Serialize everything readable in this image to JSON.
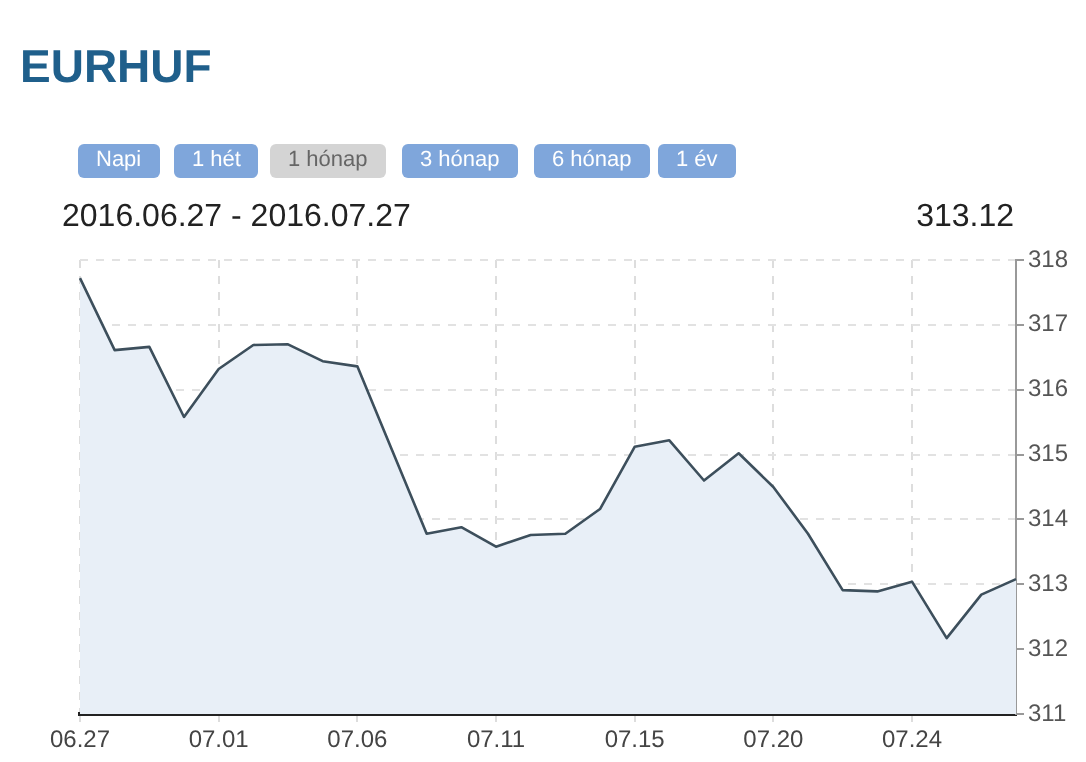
{
  "chart_data": {
    "type": "area",
    "title": "EURHUF",
    "annotations": [
      "2016.06.27 - 2016.07.27",
      "313.12",
      "Napi",
      "1 hét",
      "1 hónap",
      "3 hónap",
      "6 hónap",
      "1 év"
    ],
    "categories": [
      "06.27",
      null,
      null,
      null,
      "07.01",
      null,
      null,
      null,
      "07.06",
      null,
      null,
      null,
      "07.11",
      null,
      null,
      null,
      "07.15",
      null,
      null,
      null,
      "07.20",
      null,
      null,
      null,
      "07.24",
      null,
      null,
      null
    ],
    "series": [
      {
        "color": "#3d4f5c",
        "values": [
          317.72,
          316.61,
          316.66,
          315.58,
          316.32,
          316.69,
          316.7,
          316.44,
          316.36,
          315.07,
          313.78,
          313.88,
          313.58,
          313.76,
          313.78,
          314.16,
          315.12,
          315.22,
          314.6,
          315.02,
          314.5,
          313.78,
          312.91,
          312.89,
          313.04,
          312.17,
          312.84,
          313.08
        ]
      }
    ],
    "ylim": [
      311,
      318
    ],
    "yticks": [
      311,
      312,
      313,
      314,
      315,
      316,
      317,
      318
    ],
    "grid": true,
    "legend": false,
    "marker": "none",
    "line_style": "solid"
  }
}
